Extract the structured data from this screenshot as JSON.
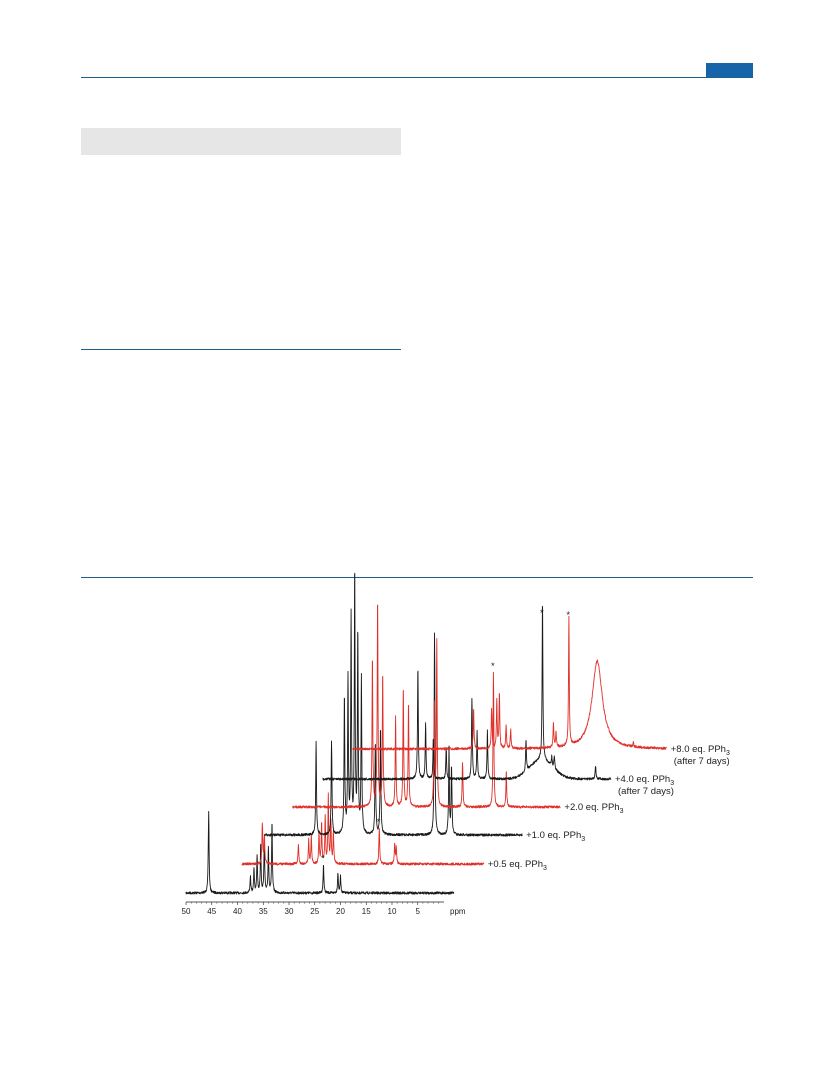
{
  "colors": {
    "accent": "#1565a8",
    "rule": "#1f5f8b",
    "red": "#e0302a",
    "black": "#1a1a1a"
  },
  "chart_data": {
    "type": "line",
    "title": "",
    "xlabel": "ppm",
    "xlim": [
      50,
      0
    ],
    "x_ticks": [
      "50",
      "45",
      "40",
      "35",
      "30",
      "25",
      "20",
      "15",
      "10",
      "5",
      "ppm"
    ],
    "grid": false,
    "series": [
      {
        "name": "",
        "color": "#1a1a1a",
        "peaks": [
          [
            45.6,
            1.0
          ],
          [
            37.5,
            0.2
          ],
          [
            36.8,
            0.3
          ],
          [
            36.2,
            0.45
          ],
          [
            35.5,
            0.6
          ],
          [
            34.8,
            0.65
          ],
          [
            34.0,
            0.55
          ],
          [
            33.3,
            0.85
          ],
          [
            23.3,
            0.35
          ],
          [
            20.5,
            0.25
          ],
          [
            20.0,
            0.2
          ]
        ]
      },
      {
        "name": "",
        "label_main": "+0.5 eq. PPh",
        "label_sub": "3",
        "color": "#e0302a",
        "peaks": [
          [
            41.0,
            0.5
          ],
          [
            40.6,
            0.35
          ],
          [
            34.0,
            0.25
          ],
          [
            32.0,
            0.3
          ],
          [
            31.5,
            0.35
          ],
          [
            30.0,
            0.4
          ],
          [
            29.5,
            0.5
          ],
          [
            28.8,
            0.6
          ],
          [
            28.2,
            0.85
          ],
          [
            27.7,
            0.55
          ],
          [
            27.2,
            0.4
          ],
          [
            18.3,
            0.45
          ],
          [
            15.3,
            0.25
          ],
          [
            15.0,
            0.2
          ]
        ]
      },
      {
        "name": "",
        "label_main": "+1.0 eq. PPh",
        "label_sub": "3",
        "color": "#1a1a1a",
        "peaks": [
          [
            36.0,
            0.3
          ],
          [
            33.0,
            0.3
          ],
          [
            30.5,
            0.45
          ],
          [
            29.8,
            0.5
          ],
          [
            29.2,
            0.7
          ],
          [
            28.5,
            0.85
          ],
          [
            27.9,
            0.65
          ],
          [
            27.2,
            0.5
          ],
          [
            24.5,
            0.3
          ],
          [
            23.5,
            0.35
          ],
          [
            13.0,
            0.65
          ],
          [
            10.2,
            0.28
          ],
          [
            9.7,
            0.22
          ]
        ]
      },
      {
        "name": "",
        "label_main": "+2.0 eq. PPh",
        "label_sub": "3",
        "color": "#e0302a",
        "peaks": [
          [
            30.5,
            0.5
          ],
          [
            29.5,
            0.7
          ],
          [
            28.5,
            0.45
          ],
          [
            26.0,
            0.3
          ],
          [
            24.5,
            0.4
          ],
          [
            23.5,
            0.35
          ],
          [
            18.5,
            0.35
          ],
          [
            18.0,
            0.55
          ],
          [
            13.0,
            0.15
          ],
          [
            7.0,
            0.45
          ],
          [
            4.5,
            0.12
          ]
        ]
      },
      {
        "name": "",
        "label_main": "+4.0 eq. PPh",
        "label_sub": "3",
        "label_line2": "(after 7 days)",
        "color": "#1a1a1a",
        "peaks": [
          [
            27.5,
            0.7
          ],
          [
            26.0,
            0.35
          ],
          [
            24.5,
            0.25
          ],
          [
            22.0,
            0.2
          ],
          [
            17.0,
            0.5
          ],
          [
            16.0,
            0.3
          ],
          [
            14.0,
            0.3
          ],
          [
            6.5,
            0.2
          ],
          [
            3.3,
            1.0
          ],
          [
            1.5,
            0.06
          ],
          [
            1.0,
            0.08
          ],
          [
            -7.0,
            0.08
          ]
        ]
      },
      {
        "name": "",
        "label_main": "+8.0 eq. PPh",
        "label_sub": "3",
        "label_line2": "(after 7 days)",
        "color": "#e0302a",
        "peaks": [
          [
            22.5,
            0.25
          ],
          [
            19.0,
            0.25
          ],
          [
            18.0,
            0.3
          ],
          [
            17.5,
            0.35
          ],
          [
            16.2,
            0.15
          ],
          [
            15.3,
            0.12
          ],
          [
            7.0,
            0.15
          ],
          [
            6.5,
            0.1
          ],
          [
            4.0,
            0.8
          ],
          [
            -1.5,
            0.55
          ],
          [
            -8.5,
            0.03
          ]
        ]
      }
    ],
    "annotations": [
      "*",
      "*",
      "*",
      "*",
      "*"
    ]
  }
}
